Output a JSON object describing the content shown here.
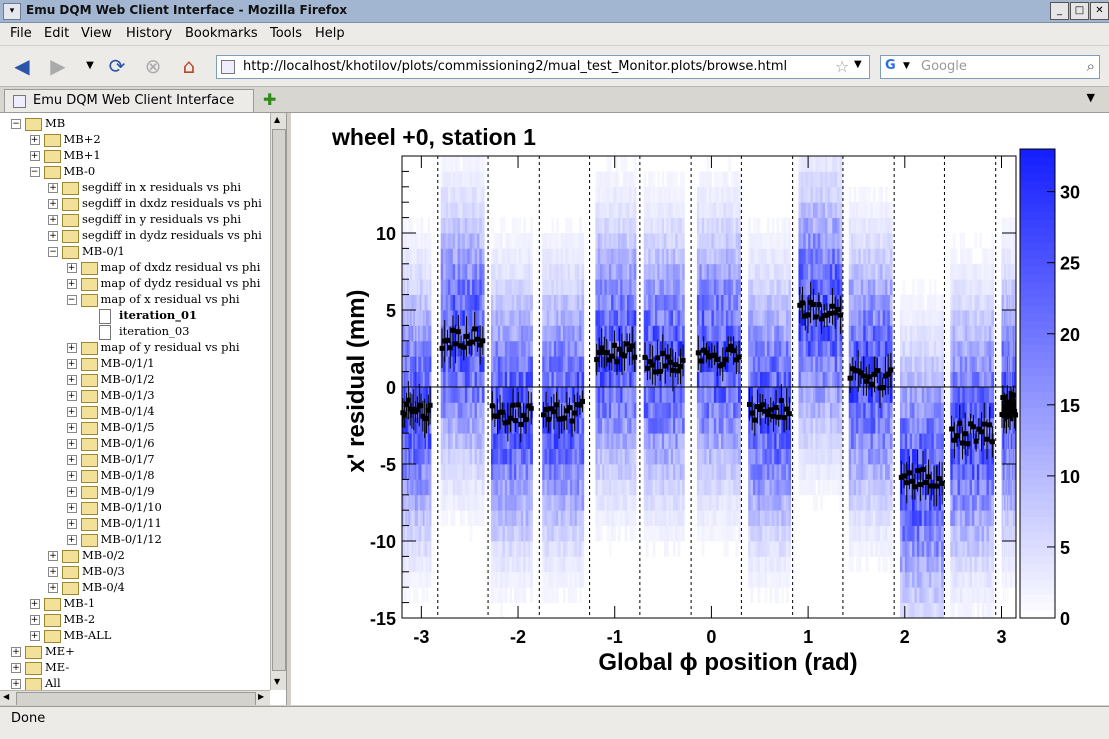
{
  "window": {
    "title": "Emu DQM Web Client Interface - Mozilla Firefox"
  },
  "menu": [
    "File",
    "Edit",
    "View",
    "History",
    "Bookmarks",
    "Tools",
    "Help"
  ],
  "nav": {
    "url": "http://localhost/khotilov/plots/commissioning2/mual_test_Monitor.plots/browse.html",
    "search_placeholder": "Google"
  },
  "tab": {
    "label": "Emu DQM Web Client Interface"
  },
  "tree": [
    {
      "label": "MB",
      "level": 1,
      "type": "folder",
      "exp": "-"
    },
    {
      "label": "MB+2",
      "level": 2,
      "type": "folder",
      "exp": "+"
    },
    {
      "label": "MB+1",
      "level": 2,
      "type": "folder",
      "exp": "+"
    },
    {
      "label": "MB-0",
      "level": 2,
      "type": "folder",
      "exp": "-"
    },
    {
      "label": "segdiff in x residuals vs phi",
      "level": 3,
      "type": "folder",
      "exp": "+"
    },
    {
      "label": "segdiff in dxdz residuals vs phi",
      "level": 3,
      "type": "folder",
      "exp": "+"
    },
    {
      "label": "segdiff in y residuals vs phi",
      "level": 3,
      "type": "folder",
      "exp": "+"
    },
    {
      "label": "segdiff in dydz residuals vs phi",
      "level": 3,
      "type": "folder",
      "exp": "+"
    },
    {
      "label": "MB-0/1",
      "level": 3,
      "type": "folder",
      "exp": "-"
    },
    {
      "label": "map of dxdz residual vs phi",
      "level": 4,
      "type": "folder",
      "exp": "+"
    },
    {
      "label": "map of dydz residual vs phi",
      "level": 4,
      "type": "folder",
      "exp": "+"
    },
    {
      "label": "map of x residual vs phi",
      "level": 4,
      "type": "folder",
      "exp": "-"
    },
    {
      "label": "iteration_01",
      "level": 5,
      "type": "doc",
      "exp": "",
      "bold": true
    },
    {
      "label": "iteration_03",
      "level": 5,
      "type": "doc",
      "exp": ""
    },
    {
      "label": "map of y residual vs phi",
      "level": 4,
      "type": "folder",
      "exp": "+"
    },
    {
      "label": "MB-0/1/1",
      "level": 4,
      "type": "folder",
      "exp": "+"
    },
    {
      "label": "MB-0/1/2",
      "level": 4,
      "type": "folder",
      "exp": "+"
    },
    {
      "label": "MB-0/1/3",
      "level": 4,
      "type": "folder",
      "exp": "+"
    },
    {
      "label": "MB-0/1/4",
      "level": 4,
      "type": "folder",
      "exp": "+"
    },
    {
      "label": "MB-0/1/5",
      "level": 4,
      "type": "folder",
      "exp": "+"
    },
    {
      "label": "MB-0/1/6",
      "level": 4,
      "type": "folder",
      "exp": "+"
    },
    {
      "label": "MB-0/1/7",
      "level": 4,
      "type": "folder",
      "exp": "+"
    },
    {
      "label": "MB-0/1/8",
      "level": 4,
      "type": "folder",
      "exp": "+"
    },
    {
      "label": "MB-0/1/9",
      "level": 4,
      "type": "folder",
      "exp": "+"
    },
    {
      "label": "MB-0/1/10",
      "level": 4,
      "type": "folder",
      "exp": "+"
    },
    {
      "label": "MB-0/1/11",
      "level": 4,
      "type": "folder",
      "exp": "+"
    },
    {
      "label": "MB-0/1/12",
      "level": 4,
      "type": "folder",
      "exp": "+"
    },
    {
      "label": "MB-0/2",
      "level": 3,
      "type": "folder",
      "exp": "+"
    },
    {
      "label": "MB-0/3",
      "level": 3,
      "type": "folder",
      "exp": "+"
    },
    {
      "label": "MB-0/4",
      "level": 3,
      "type": "folder",
      "exp": "+"
    },
    {
      "label": "MB-1",
      "level": 2,
      "type": "folder",
      "exp": "+"
    },
    {
      "label": "MB-2",
      "level": 2,
      "type": "folder",
      "exp": "+"
    },
    {
      "label": "MB-ALL",
      "level": 2,
      "type": "folder",
      "exp": "+"
    },
    {
      "label": "ME+",
      "level": 1,
      "type": "folder",
      "exp": "+"
    },
    {
      "label": "ME-",
      "level": 1,
      "type": "folder",
      "exp": "+"
    },
    {
      "label": "All",
      "level": 1,
      "type": "folder",
      "exp": "+"
    }
  ],
  "chart_data": {
    "type": "heatmap",
    "title": "wheel +0, station 1",
    "xlabel": "Global ϕ position (rad)",
    "ylabel": "x' residual (mm)",
    "xlim": [
      -3.2,
      3.15
    ],
    "ylim": [
      -15,
      15
    ],
    "xticks": [
      -3,
      -2,
      -1,
      0,
      1,
      2,
      3
    ],
    "yticks": [
      -15,
      -10,
      -5,
      0,
      5,
      10
    ],
    "zticks": [
      0,
      5,
      10,
      15,
      20,
      25,
      30
    ],
    "zlim": [
      0,
      33
    ],
    "zero_line": 0,
    "sector_boundaries": [
      -2.83,
      -2.31,
      -1.78,
      -1.26,
      -0.74,
      -0.21,
      0.31,
      0.84,
      1.36,
      1.89,
      2.41,
      2.94
    ],
    "sectors": [
      {
        "x": [
          -3.2,
          -2.9
        ],
        "y_mean": -1.5
      },
      {
        "x": [
          -2.8,
          -2.35
        ],
        "y_mean": 3.1
      },
      {
        "x": [
          -2.28,
          -1.85
        ],
        "y_mean": -1.8
      },
      {
        "x": [
          -1.75,
          -1.32
        ],
        "y_mean": -1.6
      },
      {
        "x": [
          -1.2,
          -0.78
        ],
        "y_mean": 2.2
      },
      {
        "x": [
          -0.7,
          -0.28
        ],
        "y_mean": 1.5
      },
      {
        "x": [
          -0.15,
          0.3
        ],
        "y_mean": 2.0
      },
      {
        "x": [
          0.38,
          0.82
        ],
        "y_mean": -1.5
      },
      {
        "x": [
          0.9,
          1.35
        ],
        "y_mean": 4.8
      },
      {
        "x": [
          1.42,
          1.87
        ],
        "y_mean": 0.6
      },
      {
        "x": [
          1.95,
          2.4
        ],
        "y_mean": -6.0
      },
      {
        "x": [
          2.47,
          2.92
        ],
        "y_mean": -3.0
      },
      {
        "x": [
          3.0,
          3.15
        ],
        "y_mean": -1.2
      }
    ]
  },
  "status": {
    "text": "Done"
  }
}
